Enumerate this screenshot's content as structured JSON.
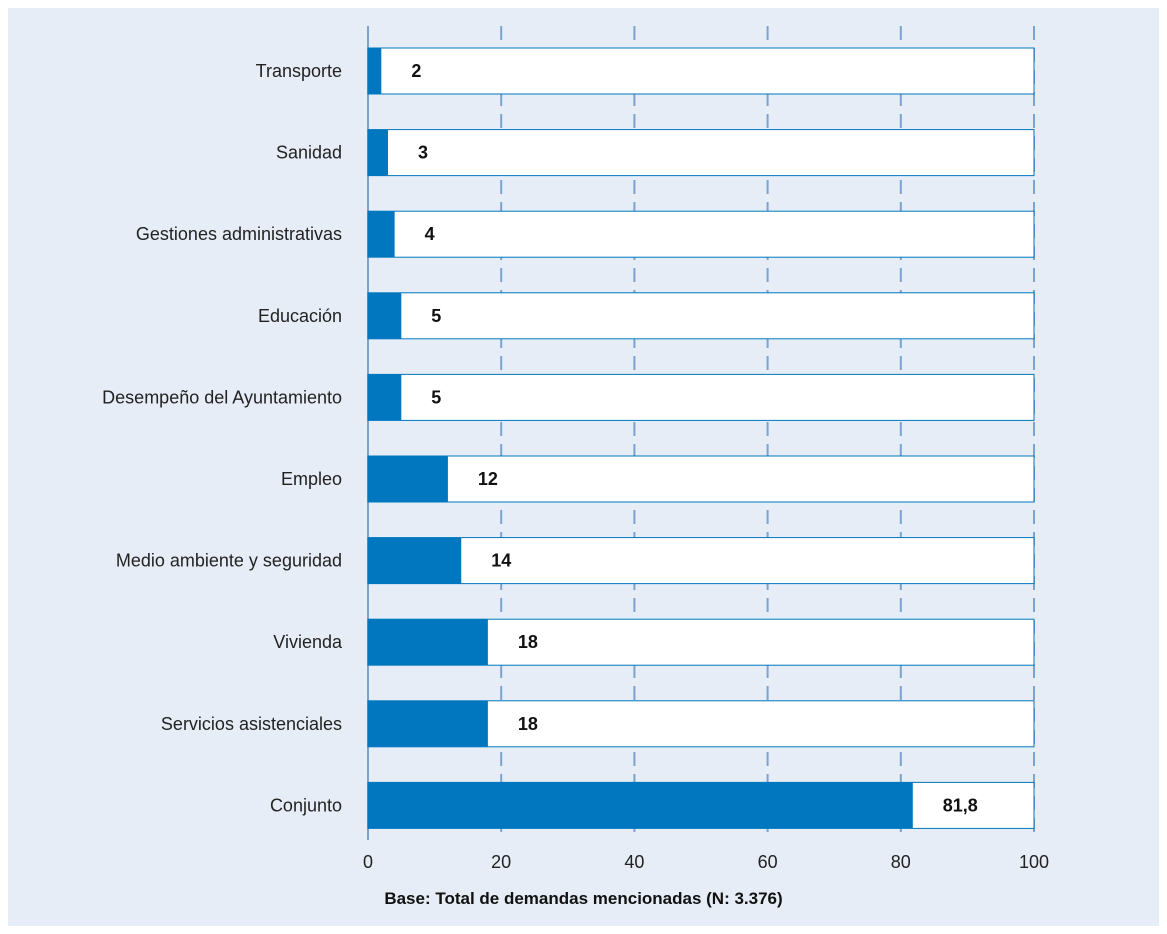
{
  "chart_data": {
    "type": "bar",
    "orientation": "horizontal",
    "stacked_to": 100,
    "categories": [
      "Transporte",
      "Sanidad",
      "Gestiones administrativas",
      "Educación",
      "Desempeño del Ayuntamiento",
      "Empleo",
      "Medio ambiente y seguridad",
      "Vivienda",
      "Servicios asistenciales",
      "Conjunto"
    ],
    "values": [
      2,
      3,
      4,
      5,
      5,
      12,
      14,
      18,
      18,
      81.8
    ],
    "value_labels": [
      "2",
      "3",
      "4",
      "5",
      "5",
      "12",
      "14",
      "18",
      "18",
      "81,8"
    ],
    "xlim": [
      0,
      100
    ],
    "xticks": [
      0,
      20,
      40,
      60,
      80,
      100
    ],
    "xtick_labels": [
      "0",
      "20",
      "40",
      "60",
      "80",
      "100"
    ],
    "grid": "vertical dashed",
    "colors": {
      "bar": "#0077bf",
      "remainder": "#ffffff",
      "background": "#e6edf6",
      "grid": "#7ba3d0"
    },
    "note": "Base: Total de demandas mencionadas (N: 3.376)"
  }
}
